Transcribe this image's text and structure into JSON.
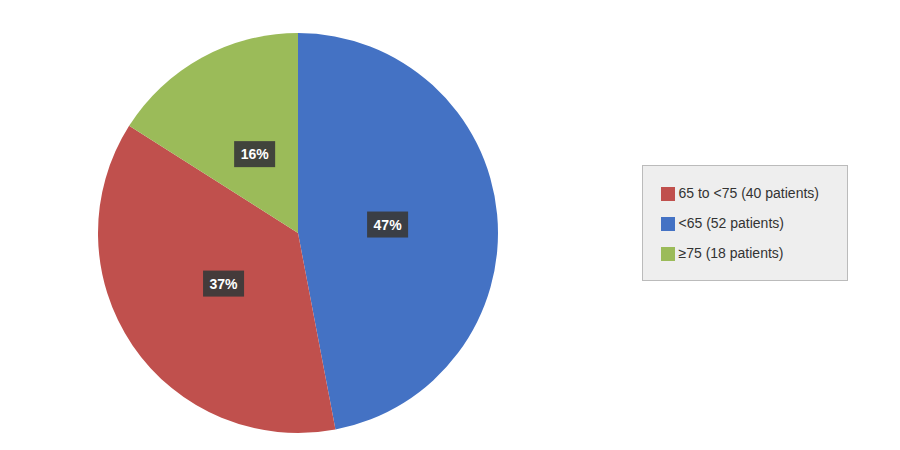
{
  "chart_data": {
    "type": "pie",
    "categories": [
      "<65 (52 patients)",
      "65 to <75 (40 patients)",
      "≥75 (18 patients)"
    ],
    "values": [
      47,
      37,
      16
    ],
    "value_labels": [
      "47%",
      "37%",
      "16%"
    ],
    "colors": [
      "#4472C4",
      "#C0504D",
      "#9BBB59"
    ],
    "data_labels": true
  }
}
